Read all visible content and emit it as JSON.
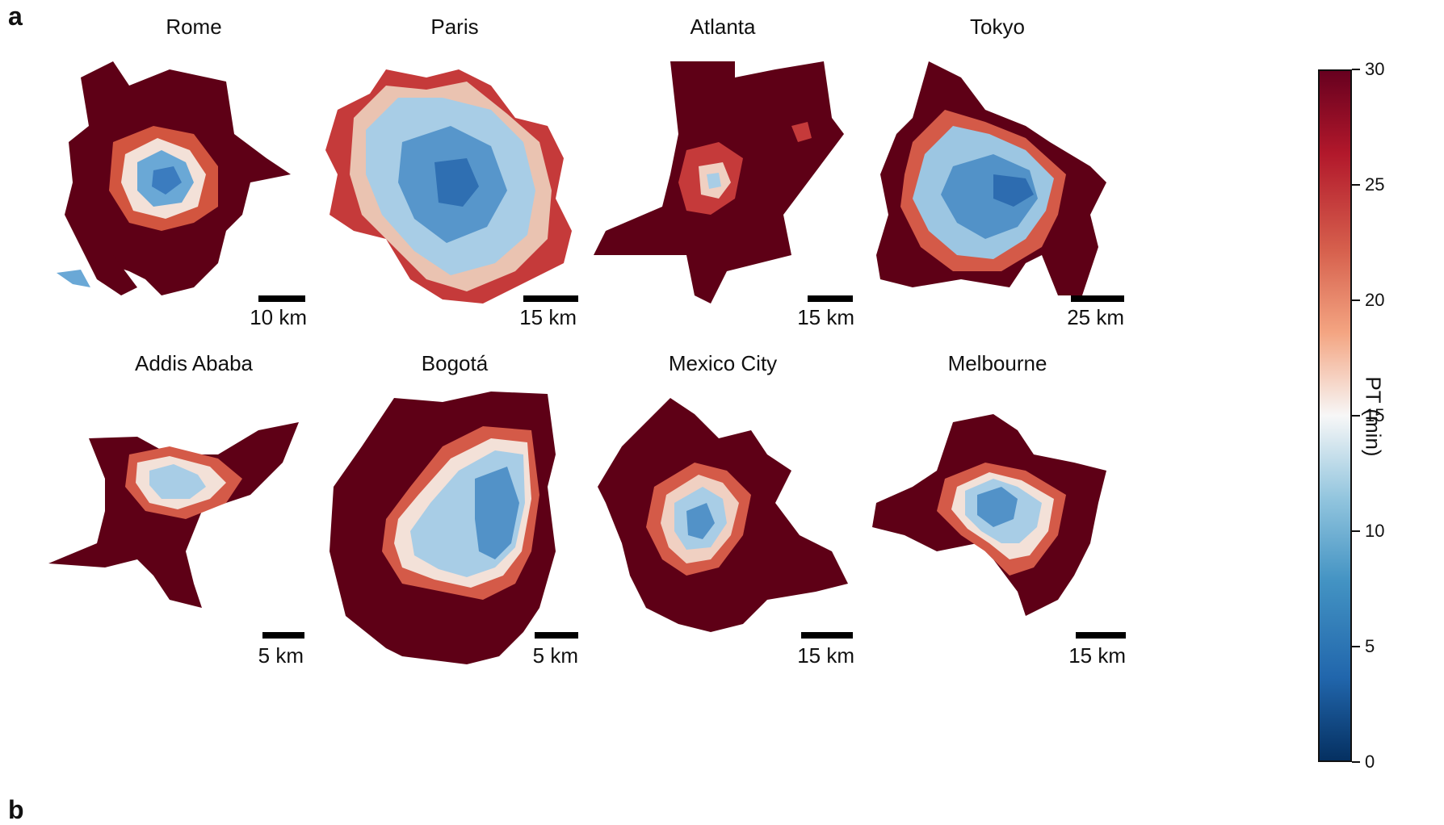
{
  "figure": {
    "panel_label": "a",
    "next_panel_label": "b"
  },
  "colors": {
    "far": "#5e0016",
    "mid_red": "#c53a3a",
    "pale": "#f3e1d8",
    "light_blue": "#b6d5ea",
    "blue": "#4f93c8",
    "deep_blue": "#2166ac"
  },
  "maps": [
    {
      "city": "Rome",
      "scale_label": "10 km",
      "core_share": 0.3
    },
    {
      "city": "Paris",
      "scale_label": "15 km",
      "core_share": 0.8
    },
    {
      "city": "Atlanta",
      "scale_label": "15 km",
      "core_share": 0.1
    },
    {
      "city": "Tokyo",
      "scale_label": "25 km",
      "core_share": 0.65
    },
    {
      "city": "Addis Ababa",
      "scale_label": "5 km",
      "core_share": 0.25
    },
    {
      "city": "Bogotá",
      "scale_label": "5 km",
      "core_share": 0.45
    },
    {
      "city": "Mexico City",
      "scale_label": "15 km",
      "core_share": 0.25
    },
    {
      "city": "Melbourne",
      "scale_label": "15 km",
      "core_share": 0.35
    }
  ],
  "colorbar": {
    "label": "PT (min)",
    "min": 0,
    "max": 30,
    "ticks": [
      "30",
      "25",
      "20",
      "15",
      "10",
      "5",
      "0"
    ],
    "colormap": "RdBu_r"
  }
}
